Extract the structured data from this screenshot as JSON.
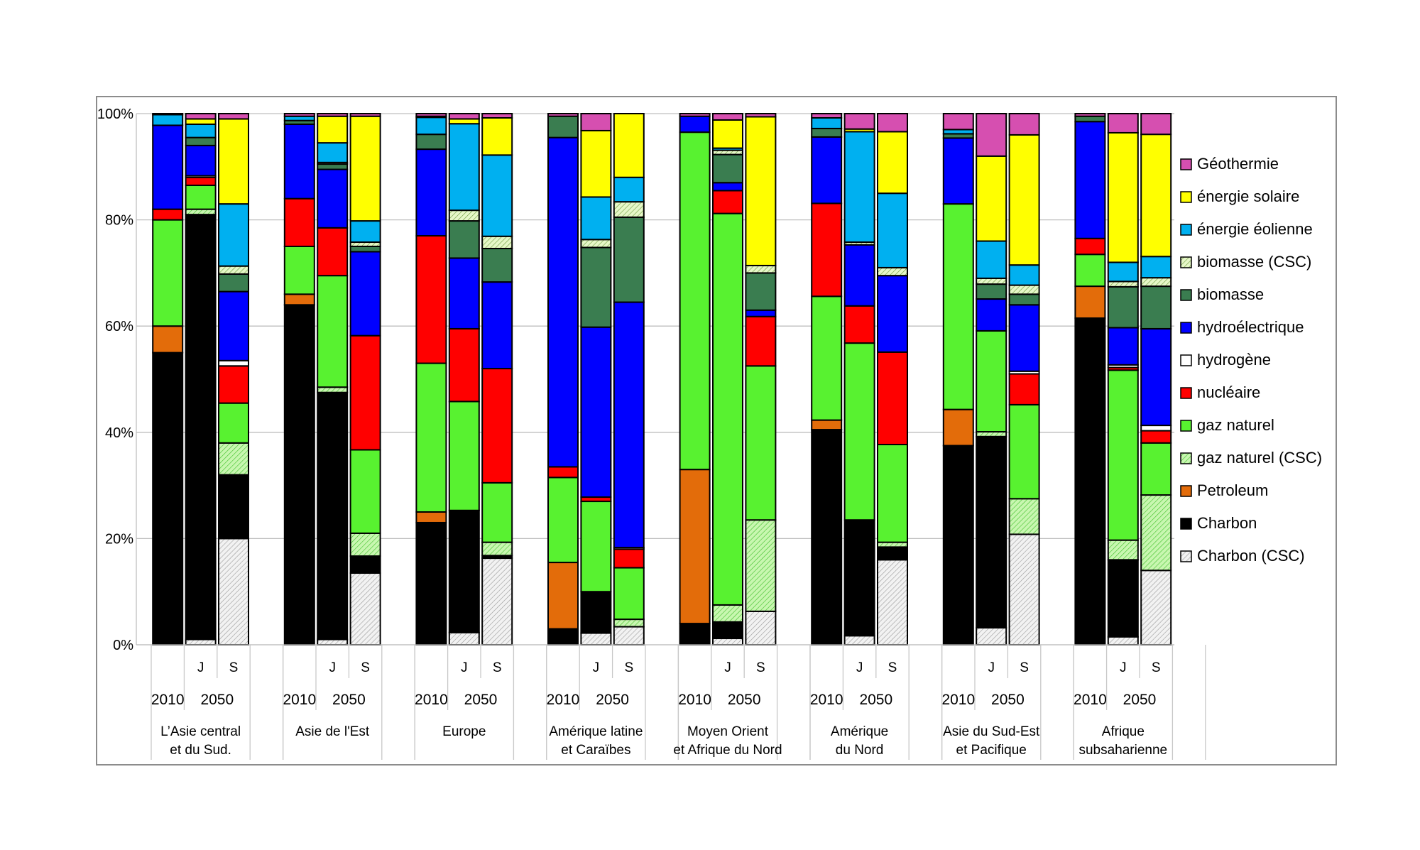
{
  "chart_data": {
    "type": "bar",
    "stacked": true,
    "normalized": true,
    "ylim": [
      0,
      100
    ],
    "yticks": [
      "0%",
      "20%",
      "40%",
      "60%",
      "80%",
      "100%"
    ],
    "grid": true,
    "legend_placement": "right",
    "series": [
      {
        "name": "Charbon (CSC)",
        "color": "#e0e0e0",
        "hatch": true
      },
      {
        "name": "Charbon",
        "color": "#000000"
      },
      {
        "name": "Petroleum",
        "color": "#e36c0a"
      },
      {
        "name": "gaz naturel (CSC)",
        "color": "#b6f5a0",
        "hatch": true
      },
      {
        "name": "gaz naturel",
        "color": "#58f230"
      },
      {
        "name": "nucléaire",
        "color": "#ff0000"
      },
      {
        "name": "hydrogène",
        "color": "#ffffff"
      },
      {
        "name": "hydroélectrique",
        "color": "#0000ff"
      },
      {
        "name": "biomasse",
        "color": "#3a7d50"
      },
      {
        "name": "biomasse (CSC)",
        "color": "#d4f0a8",
        "hatch": true
      },
      {
        "name": "énergie éolienne",
        "color": "#00b0f0"
      },
      {
        "name": "énergie solaire",
        "color": "#ffff00"
      },
      {
        "name": "Géothermie",
        "color": "#d64fb0"
      }
    ],
    "groups": [
      {
        "label": [
          "L’Asie central",
          "et du Sud."
        ],
        "bars": [
          {
            "label": "2010",
            "values": [
              0,
              55,
              5,
              0,
              20,
              2,
              0,
              15.8,
              0,
              0,
              2,
              0,
              0.2
            ]
          },
          {
            "label": "J",
            "values": [
              1,
              80,
              0,
              1,
              4.5,
              1.5,
              0.3,
              5.7,
              1.5,
              0,
              2.5,
              1,
              1
            ]
          },
          {
            "label": "S",
            "values": [
              20,
              12,
              0,
              6,
              7.5,
              7,
              1,
              13,
              3.3,
              1.5,
              11.7,
              16,
              1
            ]
          }
        ]
      },
      {
        "label": [
          "Asie de l'Est"
        ],
        "bars": [
          {
            "label": "2010",
            "values": [
              0,
              64,
              2,
              0,
              9,
              9,
              0,
              14,
              0.7,
              0,
              0.8,
              0,
              0.5
            ]
          },
          {
            "label": "J",
            "values": [
              1,
              46.5,
              0,
              1,
              21,
              9,
              0,
              11,
              1,
              0.3,
              3.7,
              5,
              0.5
            ]
          },
          {
            "label": "S",
            "values": [
              13.5,
              3.2,
              0,
              4.3,
              15.7,
              21.5,
              0,
              15.8,
              1,
              0.8,
              4,
              19.7,
              0.5
            ]
          }
        ]
      },
      {
        "label": [
          "Europe"
        ],
        "bars": [
          {
            "label": "2010",
            "values": [
              0,
              23,
              2,
              0,
              28,
              24,
              0,
              16.3,
              2.8,
              0,
              3.2,
              0.2,
              0.5
            ]
          },
          {
            "label": "J",
            "values": [
              2.3,
              23,
              0,
              0,
              20.5,
              13.7,
              0,
              13.3,
              7,
              2,
              16.3,
              0.9,
              1
            ]
          },
          {
            "label": "S",
            "values": [
              16.3,
              0.5,
              0,
              2.5,
              11.2,
              21.5,
              0,
              16.3,
              6.3,
              2.3,
              15.3,
              7,
              0.8
            ]
          }
        ]
      },
      {
        "label": [
          "Amérique latine",
          "et Caraïbes"
        ],
        "bars": [
          {
            "label": "2010",
            "values": [
              0,
              3,
              12.5,
              0,
              16,
              2,
              0,
              62,
              4,
              0,
              0,
              0,
              0.5
            ]
          },
          {
            "label": "J",
            "values": [
              2.2,
              7.8,
              0,
              0,
              17,
              0.8,
              0,
              32,
              15,
              1.5,
              8,
              12.5,
              3.2
            ]
          },
          {
            "label": "S",
            "values": [
              3.4,
              0,
              0,
              1.4,
              9.7,
              3.5,
              0.3,
              46.2,
              16,
              2.9,
              4.6,
              12,
              0
            ]
          }
        ]
      },
      {
        "label": [
          "Moyen Orient",
          "et Afrique du Nord"
        ],
        "bars": [
          {
            "label": "2010",
            "values": [
              0,
              4,
              29,
              0,
              63.5,
              0,
              0,
              3,
              0,
              0,
              0,
              0,
              0.5
            ]
          },
          {
            "label": "J",
            "values": [
              1.2,
              3.1,
              0,
              3.2,
              73.7,
              4.3,
              0,
              1.5,
              5.3,
              0.8,
              0.4,
              5.3,
              1.2
            ]
          },
          {
            "label": "S",
            "values": [
              6.3,
              0,
              0,
              17.2,
              29,
              9.3,
              0,
              1.2,
              7,
              1.4,
              0,
              28,
              0.6
            ]
          }
        ]
      },
      {
        "label": [
          "Amérique",
          "du Nord"
        ],
        "bars": [
          {
            "label": "2010",
            "values": [
              0,
              40.5,
              1.8,
              0,
              23.3,
              17.5,
              0,
              12.5,
              1.6,
              0,
              2,
              0,
              0.8
            ]
          },
          {
            "label": "J",
            "values": [
              1.7,
              21.8,
              0,
              0,
              33.3,
              7,
              0,
              11.5,
              0,
              0.5,
              20.8,
              0.5,
              2.9
            ]
          },
          {
            "label": "S",
            "values": [
              16,
              2.4,
              0,
              0.9,
              18.4,
              17.4,
              0,
              14.4,
              0,
              1.5,
              14,
              11.6,
              3.4
            ]
          }
        ]
      },
      {
        "label": [
          "Asie du Sud-Est",
          "et Pacifique"
        ],
        "bars": [
          {
            "label": "2010",
            "values": [
              0,
              37.5,
              6.8,
              0,
              38.7,
              0,
              0,
              12.4,
              0.8,
              0,
              0.8,
              0,
              3
            ]
          },
          {
            "label": "J",
            "values": [
              3.2,
              36,
              0,
              0.9,
              19,
              0,
              0,
              6,
              2.8,
              1.1,
              7,
              16,
              8
            ]
          },
          {
            "label": "S",
            "values": [
              20.8,
              0,
              0,
              6.7,
              17.7,
              5.8,
              0.5,
              12.5,
              2,
              1.7,
              3.8,
              24.5,
              4
            ]
          }
        ]
      },
      {
        "label": [
          "Afrique",
          "subsaharienne"
        ],
        "bars": [
          {
            "label": "2010",
            "values": [
              0,
              61.5,
              6,
              0,
              6,
              3,
              0,
              22,
              1,
              0,
              0,
              0,
              0.5
            ]
          },
          {
            "label": "J",
            "values": [
              1.5,
              14.5,
              0,
              3.7,
              32,
              0.5,
              0.5,
              7,
              7.7,
              1,
              3.6,
              24.4,
              3.6
            ]
          },
          {
            "label": "S",
            "values": [
              14,
              0,
              0,
              14.2,
              9.8,
              2.3,
              1,
              18.2,
              8,
              1.6,
              4,
              23,
              3.9
            ]
          }
        ]
      }
    ],
    "year_labels": [
      "2010",
      "2050"
    ]
  }
}
